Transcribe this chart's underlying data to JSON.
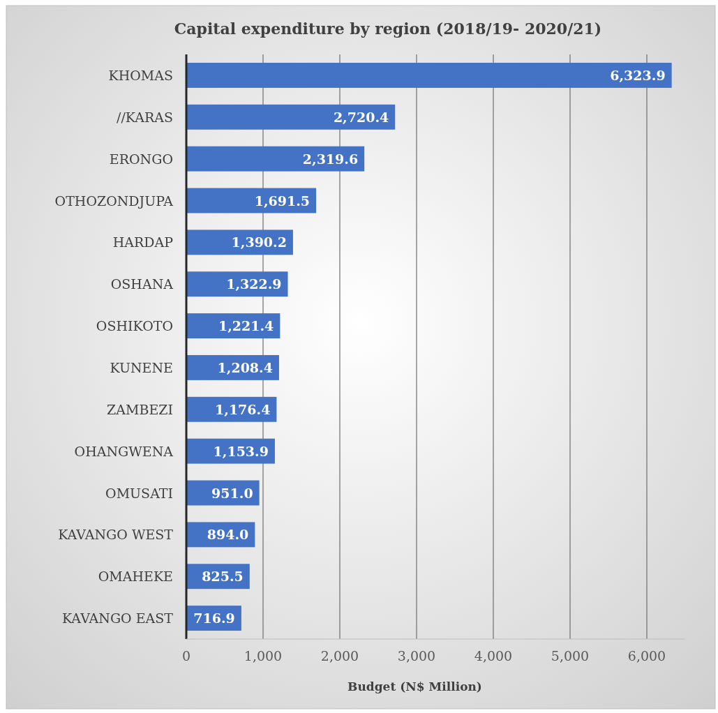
{
  "chart_data": {
    "type": "bar",
    "orientation": "horizontal",
    "title": "Capital expenditure by region (2018/19- 2020/21)",
    "xlabel": "Budget (N$ Million)",
    "categories": [
      "KHOMAS",
      "//KARAS",
      "ERONGO",
      "OTHOZONDJUPA",
      "HARDAP",
      "OSHANA",
      "OSHIKOTO",
      "KUNENE",
      "ZAMBEZI",
      "OHANGWENA",
      "OMUSATI",
      "KAVANGO WEST",
      "OMAHEKE",
      "KAVANGO EAST"
    ],
    "values": [
      6323.9,
      2720.4,
      2319.6,
      1691.5,
      1390.2,
      1322.9,
      1221.4,
      1208.4,
      1176.4,
      1153.9,
      951.0,
      894.0,
      825.5,
      716.9
    ],
    "color": "#4472c4",
    "xlim": [
      0,
      6500
    ],
    "xticks": [
      0,
      {
        "value": 1000,
        "label": "1,000"
      },
      {
        "value": 2000,
        "label": "2,000"
      },
      {
        "value": 3000,
        "label": "3,000"
      },
      {
        "value": 4000,
        "label": "4,000"
      },
      {
        "value": 5000,
        "label": "5,000"
      },
      {
        "value": 6000,
        "label": "6,000"
      }
    ],
    "value_labels": [
      "6,323.9",
      "2,720.4",
      "2,319.6",
      "1,691.5",
      "1,390.2",
      "1,322.9",
      "1,221.4",
      "1,208.4",
      "1,176.4",
      "1,153.9",
      "951.0",
      "894.0",
      "825.5",
      "716.9"
    ],
    "grid": "x"
  }
}
